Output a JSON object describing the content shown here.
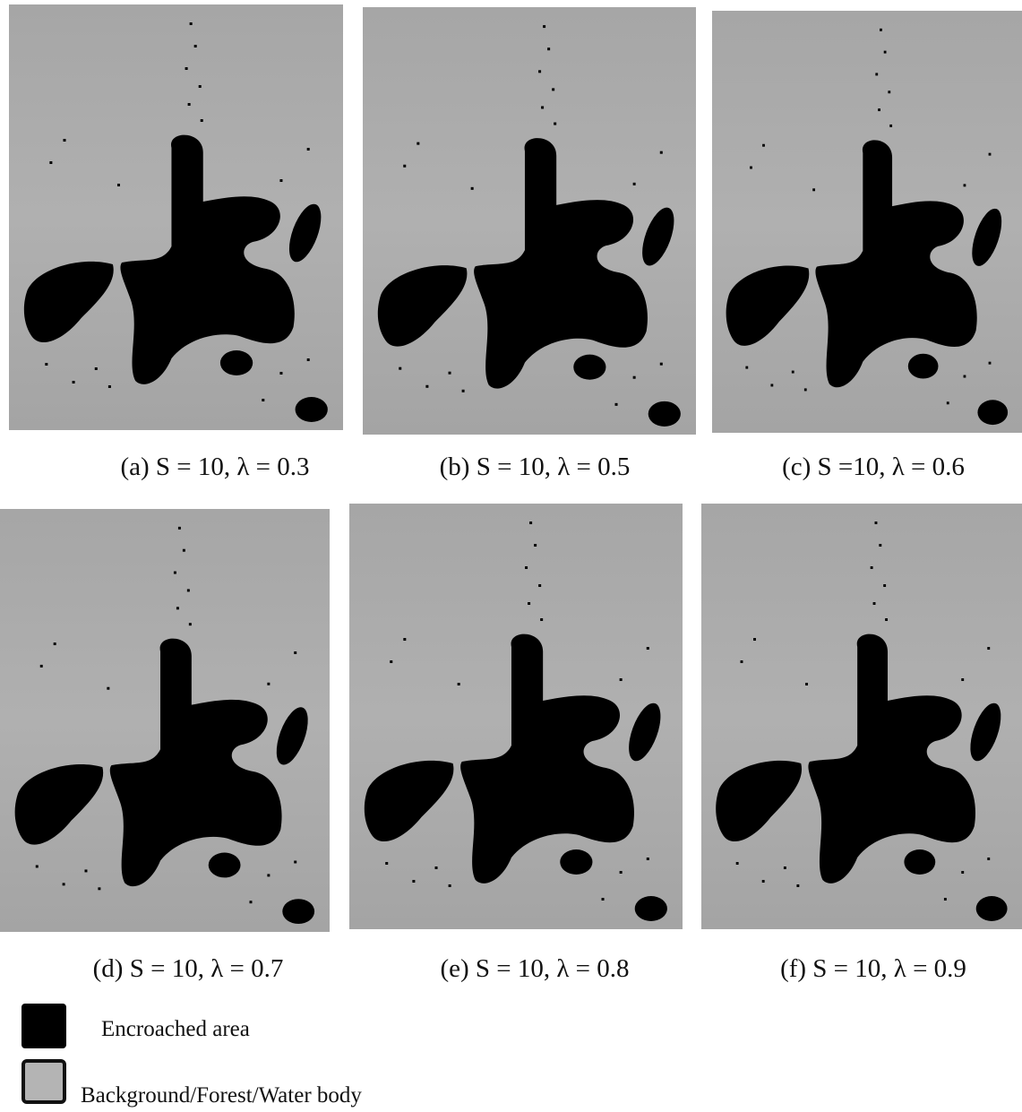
{
  "panels": [
    {
      "caption": "(a) S = 10, λ = 0.3"
    },
    {
      "caption": "(b) S = 10, λ = 0.5"
    },
    {
      "caption": "(c) S =10, λ = 0.6"
    },
    {
      "caption": "(d) S = 10, λ = 0.7"
    },
    {
      "caption": "(e) S = 10, λ = 0.8"
    },
    {
      "caption": "(f) S = 10, λ = 0.9"
    }
  ],
  "legend": [
    {
      "label": "Encroached area"
    },
    {
      "label": "Background/Forest/Water body"
    }
  ]
}
